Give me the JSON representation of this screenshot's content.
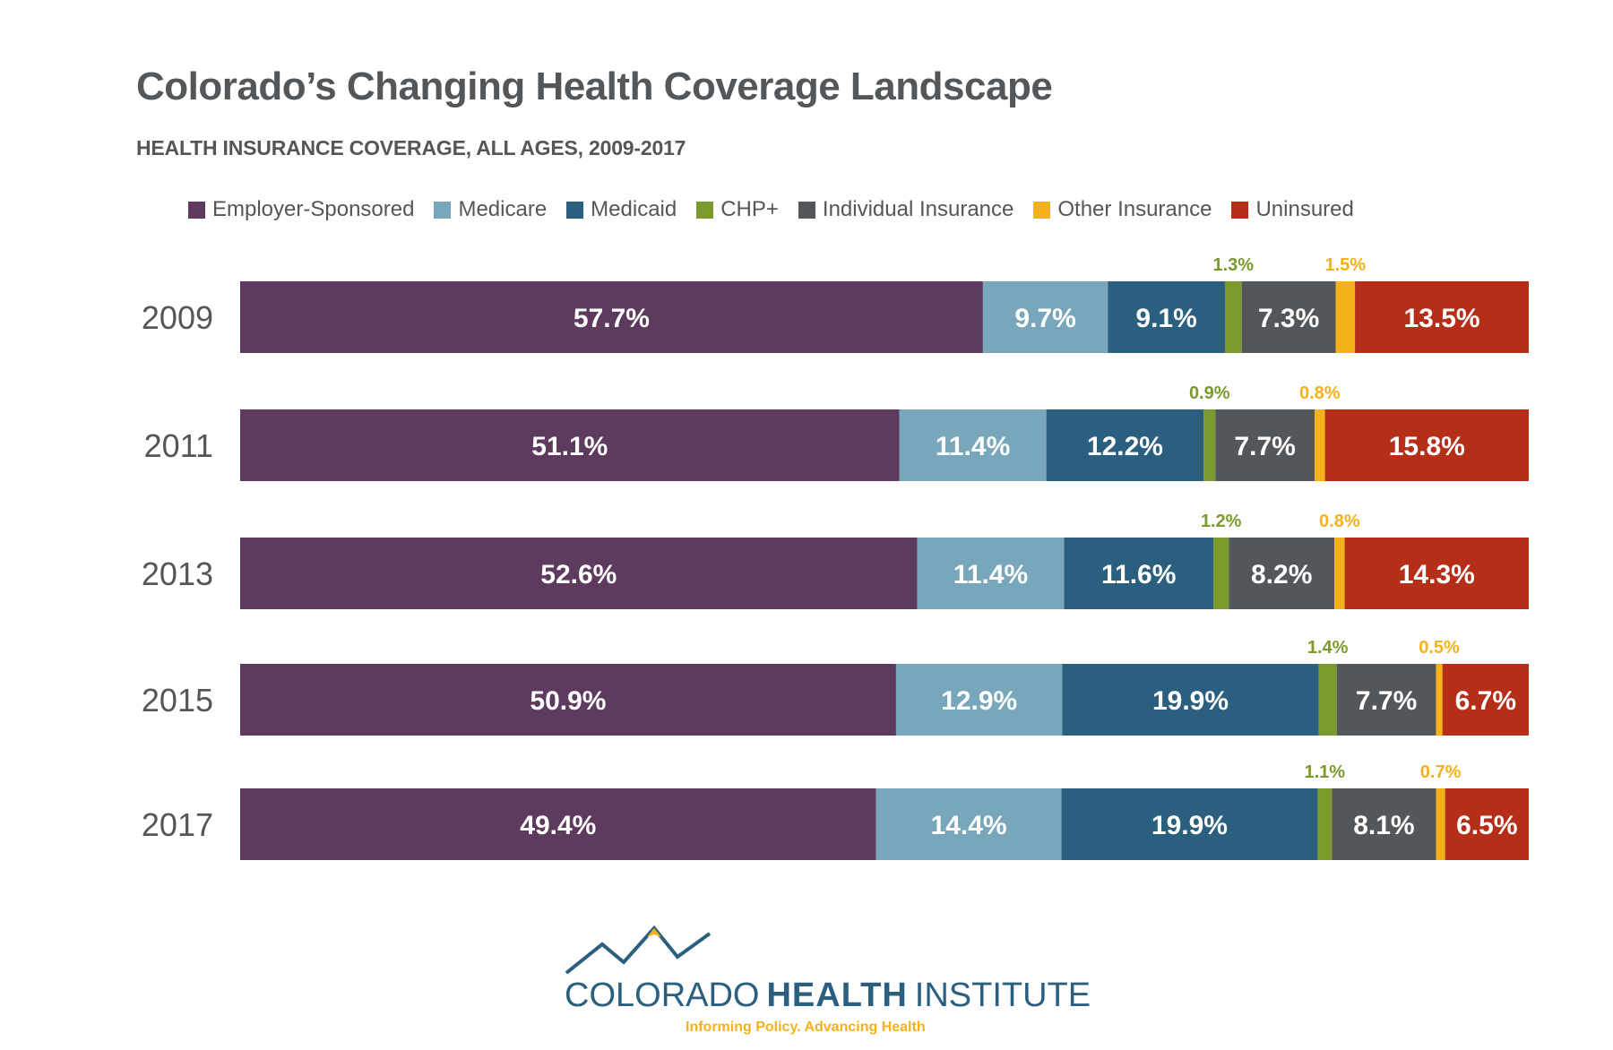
{
  "chart_data": {
    "type": "bar",
    "orientation": "horizontal",
    "stacked": true,
    "title": "Colorado’s Changing Health Coverage Landscape",
    "subtitle": "HEALTH INSURANCE COVERAGE, ALL AGES, 2009-2017",
    "xlabel": "",
    "ylabel": "",
    "xlim": [
      0,
      100
    ],
    "grid": false,
    "legend_position": "top",
    "categories": [
      "2009",
      "2011",
      "2013",
      "2015",
      "2017"
    ],
    "series": [
      {
        "name": "Employer-Sponsored",
        "color": "#5e3a5e",
        "values": [
          57.7,
          51.1,
          52.6,
          50.9,
          49.4
        ],
        "label_position": "inside"
      },
      {
        "name": "Medicare",
        "color": "#78a7bb",
        "values": [
          9.7,
          11.4,
          11.4,
          12.9,
          14.4
        ],
        "label_position": "inside"
      },
      {
        "name": "Medicaid",
        "color": "#2b5f7f",
        "values": [
          9.1,
          12.2,
          11.6,
          19.9,
          19.9
        ],
        "label_position": "inside"
      },
      {
        "name": "CHP+",
        "color": "#7a9a2c",
        "values": [
          1.3,
          0.9,
          1.2,
          1.4,
          1.1
        ],
        "label_position": "above"
      },
      {
        "name": "Individual Insurance",
        "color": "#53575a",
        "values": [
          7.3,
          7.7,
          8.2,
          7.7,
          8.1
        ],
        "label_position": "inside"
      },
      {
        "name": "Other Insurance",
        "color": "#f5b11a",
        "values": [
          1.5,
          0.8,
          0.8,
          0.5,
          0.7
        ],
        "label_position": "above"
      },
      {
        "name": "Uninsured",
        "color": "#b52e17",
        "values": [
          13.5,
          15.8,
          14.3,
          6.7,
          6.5
        ],
        "label_position": "inside"
      }
    ],
    "value_format": "{v}%"
  },
  "logo": {
    "name_light_1": "COLORADO",
    "name_bold": "HEALTH",
    "name_light_2": "INSTITUTE",
    "tagline": "Informing Policy. Advancing Health",
    "colors": {
      "primary": "#2b5f7f",
      "accent": "#f5b11a"
    }
  }
}
